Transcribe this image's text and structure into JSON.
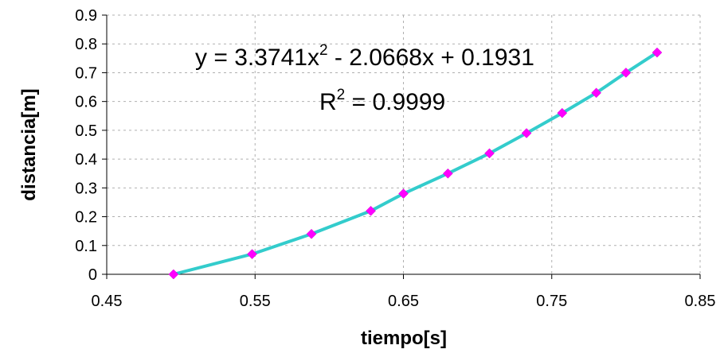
{
  "chart_data": {
    "type": "scatter",
    "title": "",
    "xlabel": "tiempo[s]",
    "ylabel": "distancia[m]",
    "xlim": [
      0.45,
      0.85
    ],
    "ylim": [
      0,
      0.9
    ],
    "x_ticks": [
      "0.45",
      "0.55",
      "0.65",
      "0.75",
      "0.85"
    ],
    "y_ticks": [
      "0",
      "0.1",
      "0.2",
      "0.3",
      "0.4",
      "0.5",
      "0.6",
      "0.7",
      "0.8",
      "0.9"
    ],
    "grid": {
      "horizontal": true,
      "vertical": true,
      "style": "dashed"
    },
    "series": [
      {
        "kind": "points",
        "marker": "diamond",
        "color": "#ff00ff",
        "x": [
          0.495,
          0.548,
          0.588,
          0.628,
          0.65,
          0.68,
          0.708,
          0.733,
          0.757,
          0.78,
          0.8,
          0.821
        ],
        "y": [
          0.0,
          0.07,
          0.14,
          0.22,
          0.28,
          0.35,
          0.42,
          0.49,
          0.56,
          0.63,
          0.7,
          0.77
        ]
      },
      {
        "kind": "trendline",
        "color": "#33cccc",
        "fit": "polynomial",
        "coefficients": [
          3.3741,
          -2.0668,
          0.1931
        ],
        "x_range": [
          0.495,
          0.821
        ]
      }
    ],
    "annotations": {
      "equation_prefix": "y = 3.3741x",
      "equation_exp": "2",
      "equation_suffix": " - 2.0668x + 0.1931",
      "r2_prefix": "R",
      "r2_exp": "2",
      "r2_suffix": " = 0.9999"
    }
  }
}
